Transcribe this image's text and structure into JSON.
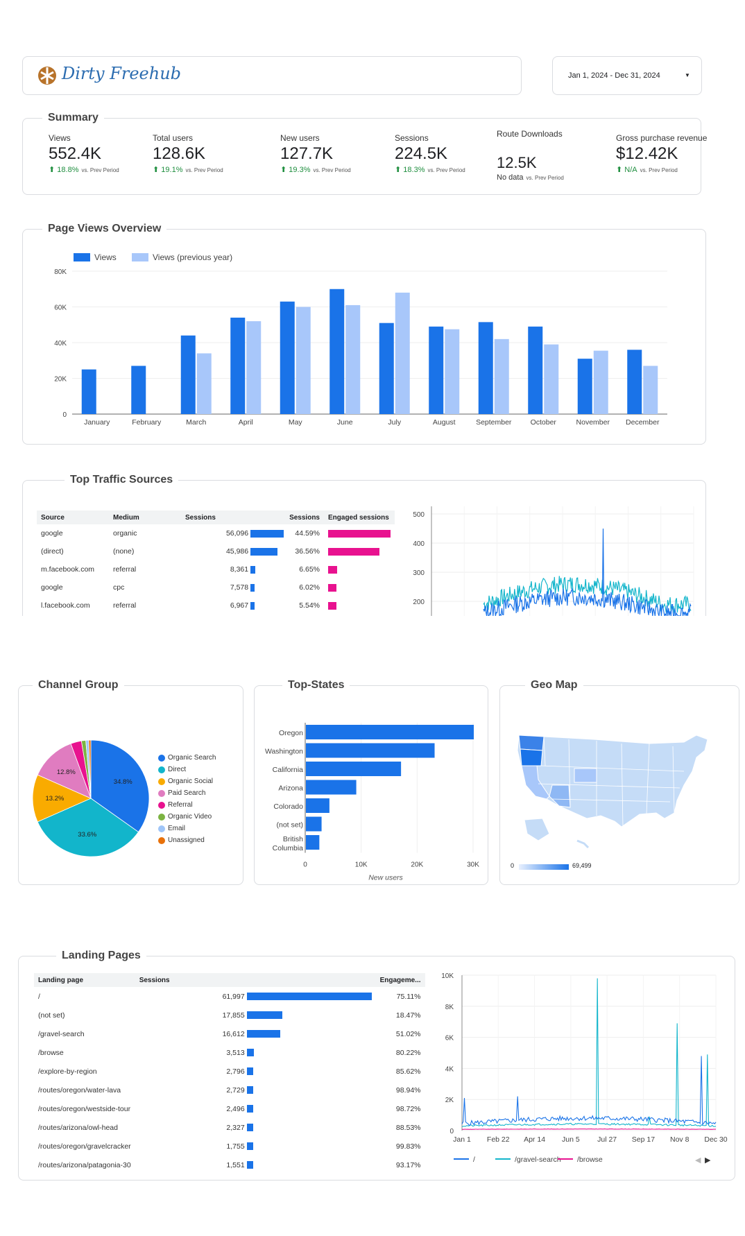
{
  "header": {
    "logo_text": "Dirty Freehub",
    "date_range": "Jan 1, 2024 - Dec 31, 2024"
  },
  "summary": {
    "title": "Summary",
    "vs_label": "vs. Prev Period",
    "kpis": [
      {
        "label": "Views",
        "value": "552.4K",
        "change": "18.8%"
      },
      {
        "label": "Total users",
        "value": "128.6K",
        "change": "19.1%"
      },
      {
        "label": "New users",
        "value": "127.7K",
        "change": "19.3%"
      },
      {
        "label": "Sessions",
        "value": "224.5K",
        "change": "18.3%"
      },
      {
        "label": "Route Downloads",
        "value": "12.5K",
        "change": "No data"
      },
      {
        "label": "Gross purchase revenue",
        "value": "$12.42K",
        "change": "N/A"
      }
    ]
  },
  "page_views": {
    "title": "Page Views Overview",
    "chart_data": {
      "type": "bar",
      "categories": [
        "January",
        "February",
        "March",
        "April",
        "May",
        "June",
        "July",
        "August",
        "September",
        "October",
        "November",
        "December"
      ],
      "series": [
        {
          "name": "Views",
          "color": "#1a73e8",
          "values": [
            25000,
            27000,
            44000,
            54000,
            63000,
            70000,
            51000,
            49000,
            51500,
            49000,
            31000,
            36000
          ]
        },
        {
          "name": "Views (previous year)",
          "color": "#a8c7fa",
          "values": [
            0,
            0,
            34000,
            52000,
            60000,
            61000,
            68000,
            47500,
            42000,
            39000,
            35500,
            27000
          ]
        }
      ],
      "yticks": [
        "0",
        "20K",
        "40K",
        "60K",
        "80K"
      ],
      "ylim": [
        0,
        80000
      ],
      "legend": "top-left"
    }
  },
  "traffic": {
    "title": "Top Traffic Sources",
    "columns": [
      "Source",
      "Medium",
      "Sessions",
      "Sessions",
      "Engaged sessions"
    ],
    "rows": [
      {
        "source": "google",
        "medium": "organic",
        "sessions": "56,096",
        "sessions_num": 56096,
        "pct": "44.59%",
        "pct_num": 44.59
      },
      {
        "source": "(direct)",
        "medium": "(none)",
        "sessions": "45,986",
        "sessions_num": 45986,
        "pct": "36.56%",
        "pct_num": 36.56
      },
      {
        "source": "m.facebook.com",
        "medium": "referral",
        "sessions": "8,361",
        "sessions_num": 8361,
        "pct": "6.65%",
        "pct_num": 6.65
      },
      {
        "source": "google",
        "medium": "cpc",
        "sessions": "7,578",
        "sessions_num": 7578,
        "pct": "6.02%",
        "pct_num": 6.02
      },
      {
        "source": "l.facebook.com",
        "medium": "referral",
        "sessions": "6,967",
        "sessions_num": 6967,
        "pct": "5.54%",
        "pct_num": 5.54
      }
    ],
    "line_chart": {
      "type": "line",
      "yticks": [
        "500",
        "400",
        "300",
        "200"
      ],
      "ylim": [
        150,
        500
      ]
    }
  },
  "channel": {
    "title": "Channel Group",
    "chart_data": {
      "type": "pie",
      "slices": [
        {
          "name": "Organic Search",
          "value": 34.8,
          "color": "#1a73e8",
          "label": "34.8%"
        },
        {
          "name": "Direct",
          "value": 33.6,
          "color": "#12b5cb",
          "label": "33.6%"
        },
        {
          "name": "Organic Social",
          "value": 13.2,
          "color": "#f9ab00",
          "label": "13.2%"
        },
        {
          "name": "Paid Search",
          "value": 12.8,
          "color": "#e07cc0",
          "label": "12.8%"
        },
        {
          "name": "Referral",
          "value": 3.0,
          "color": "#e8128f",
          "label": ""
        },
        {
          "name": "Organic Video",
          "value": 1.2,
          "color": "#7cb342",
          "label": ""
        },
        {
          "name": "Email",
          "value": 0.8,
          "color": "#9fc5f8",
          "label": ""
        },
        {
          "name": "Unassigned",
          "value": 0.6,
          "color": "#e8710a",
          "label": ""
        }
      ]
    }
  },
  "states": {
    "title": "Top-States",
    "chart_data": {
      "type": "bar",
      "categories": [
        "Oregon",
        "Washington",
        "California",
        "Arizona",
        "Colorado",
        "(not set)",
        "British Columbia"
      ],
      "values": [
        30000,
        23000,
        17000,
        9000,
        4200,
        2800,
        2400
      ],
      "xticks": [
        "0",
        "10K",
        "20K",
        "30K"
      ],
      "xlim": [
        0,
        30000
      ],
      "xlabel": "New users"
    }
  },
  "geo": {
    "title": "Geo Map",
    "scale_min": "0",
    "scale_max": "69,499"
  },
  "landing": {
    "title": "Landing Pages",
    "columns": [
      "Landing page",
      "Sessions",
      "Engageme..."
    ],
    "rows": [
      {
        "page": "/",
        "sessions": "61,997",
        "num": 61997,
        "eng": "75.11%"
      },
      {
        "page": "(not set)",
        "sessions": "17,855",
        "num": 17855,
        "eng": "18.47%"
      },
      {
        "page": "/gravel-search",
        "sessions": "16,612",
        "num": 16612,
        "eng": "51.02%"
      },
      {
        "page": "/browse",
        "sessions": "3,513",
        "num": 3513,
        "eng": "80.22%"
      },
      {
        "page": "/explore-by-region",
        "sessions": "2,796",
        "num": 2796,
        "eng": "85.62%"
      },
      {
        "page": "/routes/oregon/water-lava",
        "sessions": "2,729",
        "num": 2729,
        "eng": "98.94%"
      },
      {
        "page": "/routes/oregon/westside-tour",
        "sessions": "2,496",
        "num": 2496,
        "eng": "98.72%"
      },
      {
        "page": "/routes/arizona/owl-head",
        "sessions": "2,327",
        "num": 2327,
        "eng": "88.53%"
      },
      {
        "page": "/routes/oregon/gravelcracker",
        "sessions": "1,755",
        "num": 1755,
        "eng": "99.83%"
      },
      {
        "page": "/routes/arizona/patagonia-30",
        "sessions": "1,551",
        "num": 1551,
        "eng": "93.17%"
      }
    ],
    "line_chart": {
      "type": "line",
      "yticks": [
        "0",
        "2K",
        "4K",
        "6K",
        "8K",
        "10K"
      ],
      "ylim": [
        0,
        10000
      ],
      "xticks": [
        "Jan 1",
        "Feb 22",
        "Apr 14",
        "Jun 5",
        "Jul 27",
        "Sep 17",
        "Nov 8",
        "Dec 30"
      ],
      "legend": [
        "/",
        "/gravel-search",
        "/browse"
      ],
      "colors": [
        "#1a73e8",
        "#12b5cb",
        "#e8128f"
      ]
    }
  }
}
